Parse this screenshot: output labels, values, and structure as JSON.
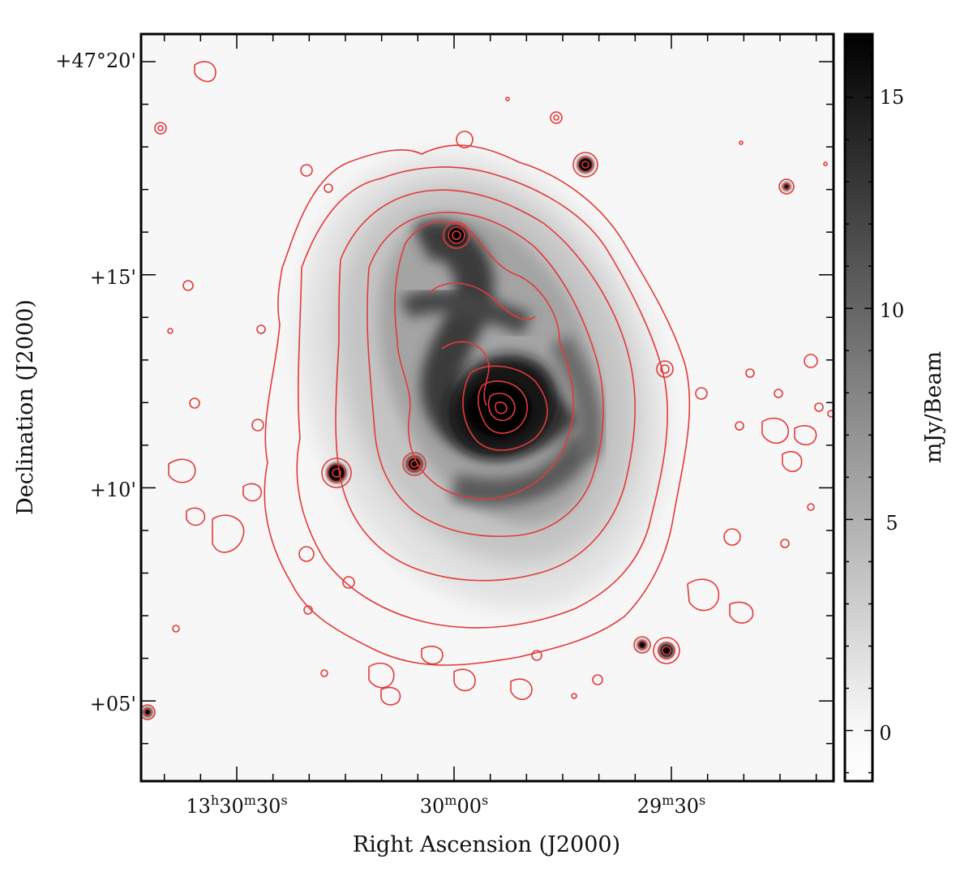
{
  "figure": {
    "x_axis_label": "Right Ascension (J2000)",
    "y_axis_label": "Declination (J2000)",
    "colorbar_label": "mJy/Beam",
    "contour_color": "#e23a3a",
    "x_ticks": [
      {
        "h": "13",
        "hu": "h",
        "m": "30",
        "mu": "m",
        "s": "30",
        "su": "s"
      },
      {
        "h": "",
        "hu": "",
        "m": "30",
        "mu": "m",
        "s": "00",
        "su": "s"
      },
      {
        "h": "",
        "hu": "",
        "m": "29",
        "mu": "m",
        "s": "30",
        "su": "s"
      }
    ],
    "y_ticks": [
      "+47°20'",
      "+15'",
      "+10'",
      "+05'"
    ],
    "colorbar_ticks": [
      "15",
      "10",
      "5",
      "0"
    ],
    "colorbar_range": [
      -1.2,
      16.5
    ]
  }
}
